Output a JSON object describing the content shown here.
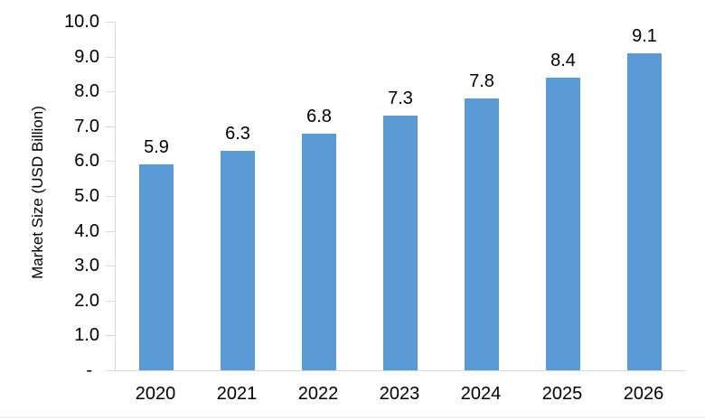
{
  "chart_data": {
    "type": "bar",
    "title": "",
    "xlabel": "",
    "ylabel": "Market Size (USD Billion)",
    "categories": [
      "2020",
      "2021",
      "2022",
      "2023",
      "2024",
      "2025",
      "2026"
    ],
    "values": [
      5.9,
      6.3,
      6.8,
      7.3,
      7.8,
      8.4,
      9.1
    ],
    "data_labels": [
      "5.9",
      "6.3",
      "6.8",
      "7.3",
      "7.8",
      "8.4",
      "9.1"
    ],
    "ylim": [
      0,
      10
    ],
    "ytick_values": [
      0,
      1,
      2,
      3,
      4,
      5,
      6,
      7,
      8,
      9,
      10
    ],
    "ytick_labels": [
      "-",
      "1.0",
      "2.0",
      "3.0",
      "4.0",
      "5.0",
      "6.0",
      "7.0",
      "8.0",
      "9.0",
      "10.0"
    ],
    "grid": false,
    "legend": "none",
    "colors": {
      "bar": "#5b9bd5",
      "axis": "#d9d9d9",
      "text": "#000000"
    }
  }
}
